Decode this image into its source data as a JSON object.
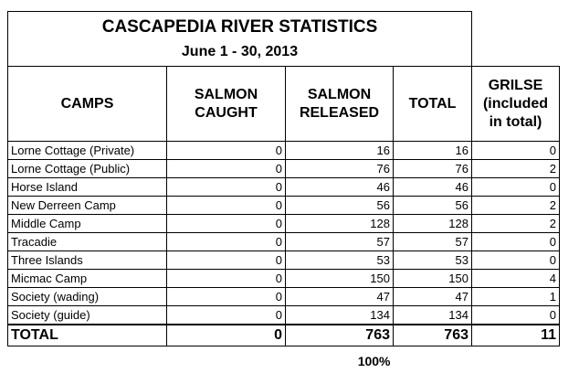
{
  "title": "CASCAPEDIA RIVER STATISTICS",
  "subtitle": "June 1 - 30, 2013",
  "headers": {
    "camps": "CAMPS",
    "caught": "SALMON CAUGHT",
    "released": "SALMON RELEASED",
    "total": "TOTAL",
    "grilse": "GRILSE (included in total)"
  },
  "rows": [
    {
      "camp": "Lorne Cottage (Private)",
      "caught": "0",
      "released": "16",
      "total": "16",
      "grilse": "0"
    },
    {
      "camp": "Lorne Cottage (Public)",
      "caught": "0",
      "released": "76",
      "total": "76",
      "grilse": "2"
    },
    {
      "camp": "Horse Island",
      "caught": "0",
      "released": "46",
      "total": "46",
      "grilse": "0"
    },
    {
      "camp": "New Derreen Camp",
      "caught": "0",
      "released": "56",
      "total": "56",
      "grilse": "2"
    },
    {
      "camp": "Middle Camp",
      "caught": "0",
      "released": "128",
      "total": "128",
      "grilse": "2"
    },
    {
      "camp": "Tracadie",
      "caught": "0",
      "released": "57",
      "total": "57",
      "grilse": "0"
    },
    {
      "camp": "Three Islands",
      "caught": "0",
      "released": "53",
      "total": "53",
      "grilse": "0"
    },
    {
      "camp": "Micmac Camp",
      "caught": "0",
      "released": "150",
      "total": "150",
      "grilse": "4"
    },
    {
      "camp": "Society (wading)",
      "caught": "0",
      "released": "47",
      "total": "47",
      "grilse": "1"
    },
    {
      "camp": "Society (guide)",
      "caught": "0",
      "released": "134",
      "total": "134",
      "grilse": "0"
    }
  ],
  "totals": {
    "label": "TOTAL",
    "caught": "0",
    "released": "763",
    "total": "763",
    "grilse": "11"
  },
  "released_percent": "100%"
}
